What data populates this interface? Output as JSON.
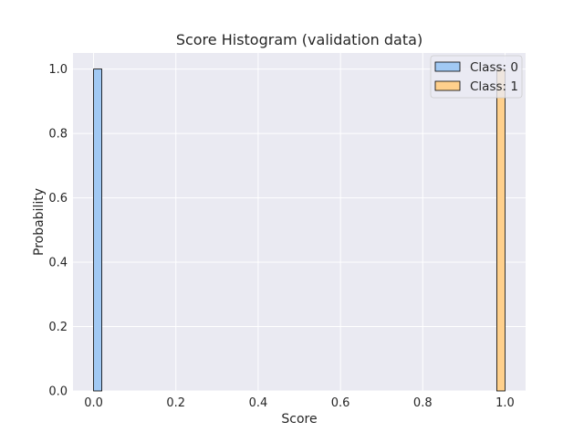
{
  "chart_data": {
    "type": "bar",
    "title": "Score Histogram (validation data)",
    "xlabel": "Score",
    "ylabel": "Probability",
    "xlim": [
      -0.05,
      1.05
    ],
    "ylim": [
      0,
      1.05
    ],
    "xticks": [
      "0.0",
      "0.2",
      "0.4",
      "0.6",
      "0.8",
      "1.0"
    ],
    "yticks": [
      "0.0",
      "0.2",
      "0.4",
      "0.6",
      "0.8",
      "1.0"
    ],
    "grid": true,
    "legend_position": "top-right",
    "series": [
      {
        "name": "Class: 0",
        "color": "#a1c9f4",
        "bins": [
          {
            "x0": 0.0,
            "x1": 0.02,
            "value": 1.0
          }
        ]
      },
      {
        "name": "Class: 1",
        "color": "#ffd08c",
        "bins": [
          {
            "x0": 0.98,
            "x1": 1.0,
            "value": 1.0
          }
        ]
      }
    ],
    "colors": {
      "plot_background": "#eaeaf2",
      "grid": "#ffffff",
      "bar_edge": "#000000"
    }
  }
}
